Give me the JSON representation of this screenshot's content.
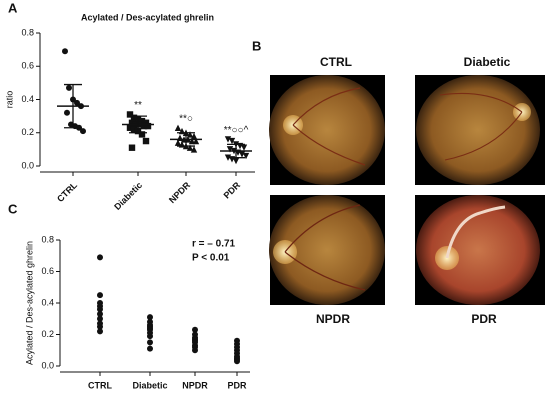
{
  "panel_labels": [
    "A",
    "B",
    "C"
  ],
  "fundus_images": {
    "labels": [
      "CTRL",
      "Diabetic",
      "NPDR",
      "PDR"
    ]
  },
  "chart_data": [
    {
      "type": "dotplot",
      "title": "Acylated / Des-acylated ghrelin",
      "ylabel": "ratio",
      "categories": [
        "CTRL",
        "Diabetic",
        "NPDR",
        "PDR"
      ],
      "markers": [
        "circle",
        "square",
        "triangle",
        "triangle-down"
      ],
      "color": "#111111",
      "values": [
        [
          0.69,
          0.47,
          0.4,
          0.38,
          0.36,
          0.32,
          0.25,
          0.24,
          0.23,
          0.21
        ],
        [
          0.31,
          0.29,
          0.28,
          0.27,
          0.26,
          0.26,
          0.25,
          0.25,
          0.24,
          0.24,
          0.23,
          0.22,
          0.21,
          0.19,
          0.15,
          0.11
        ],
        [
          0.23,
          0.21,
          0.2,
          0.19,
          0.18,
          0.17,
          0.16,
          0.16,
          0.15,
          0.15,
          0.14,
          0.13,
          0.12,
          0.11,
          0.1
        ],
        [
          0.16,
          0.15,
          0.13,
          0.12,
          0.11,
          0.1,
          0.09,
          0.08,
          0.07,
          0.06,
          0.05,
          0.04,
          0.03
        ]
      ],
      "means": [
        0.36,
        0.25,
        0.16,
        0.09
      ],
      "sd": [
        0.13,
        0.05,
        0.04,
        0.04
      ],
      "significance": [
        null,
        "**",
        "**○",
        "**○○^"
      ],
      "ylim": [
        0,
        0.8
      ],
      "yticks": [
        {
          "value": 0,
          "label": "0.0"
        },
        0.2,
        0.4,
        0.6,
        {
          "value": 0.8,
          "label": "0.8"
        }
      ]
    },
    {
      "type": "strip",
      "ylabel": "Acylated / Des-acylated ghrelin",
      "categories": [
        "CTRL",
        "Diabetic",
        "NPDR",
        "PDR"
      ],
      "color": "#111111",
      "values": [
        [
          0.69,
          0.45,
          0.4,
          0.38,
          0.36,
          0.33,
          0.3,
          0.27,
          0.25,
          0.22
        ],
        [
          0.31,
          0.28,
          0.26,
          0.25,
          0.24,
          0.23,
          0.21,
          0.19,
          0.15,
          0.11
        ],
        [
          0.23,
          0.2,
          0.18,
          0.17,
          0.16,
          0.15,
          0.13,
          0.12,
          0.1
        ],
        [
          0.16,
          0.14,
          0.12,
          0.1,
          0.08,
          0.06,
          0.05,
          0.04,
          0.03
        ]
      ],
      "annotations": [
        "r = – 0.71",
        "P < 0.01"
      ],
      "ylim": [
        0,
        0.8
      ],
      "yticks": [
        {
          "value": 0,
          "label": "0.0"
        },
        0.2,
        0.4,
        0.6,
        {
          "value": 0.8,
          "label": "0.8"
        }
      ]
    }
  ]
}
